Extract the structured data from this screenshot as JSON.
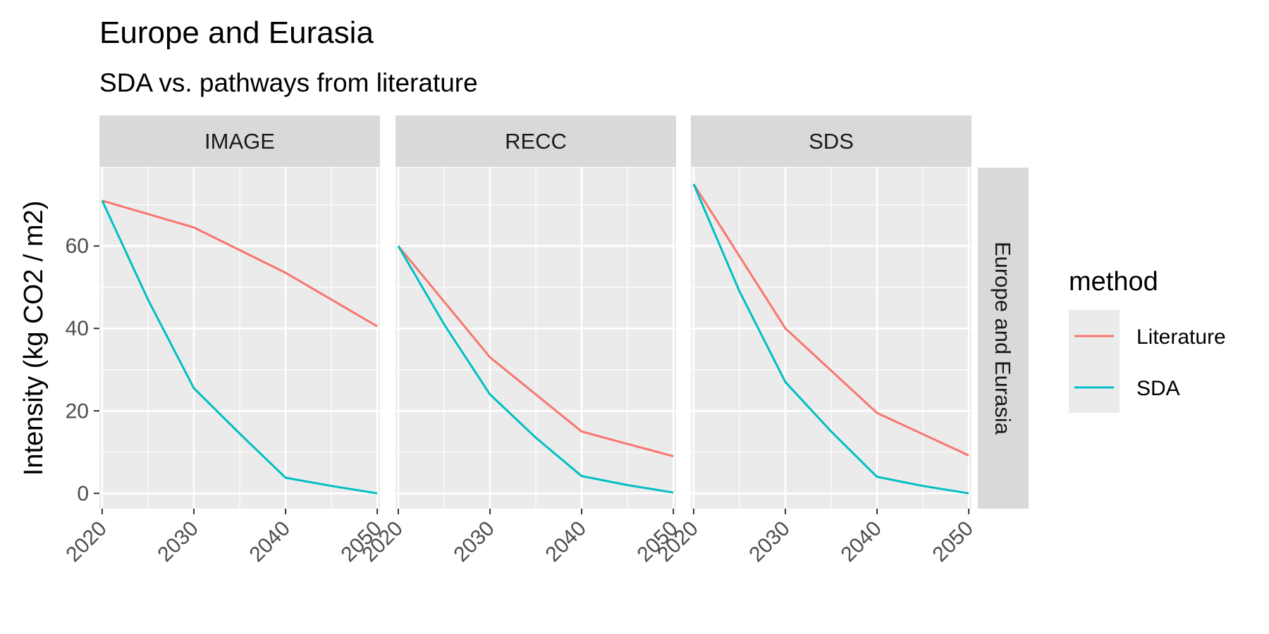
{
  "chart_data": {
    "type": "line",
    "title": "Europe and Eurasia",
    "subtitle": "SDA vs. pathways from literature",
    "ylabel": "Intensity (kg CO2 / m2)",
    "xlabel": "",
    "row_strip": "Europe and Eurasia",
    "x_ticks": [
      2020,
      2030,
      2040,
      2050
    ],
    "y_ticks": [
      0,
      20,
      40,
      60
    ],
    "xlim": [
      2019.7,
      2050.3
    ],
    "ylim": [
      -3.7,
      79
    ],
    "grid": true,
    "legend": {
      "title": "method",
      "position": "right",
      "entries": [
        {
          "name": "Literature",
          "color": "#F8766D"
        },
        {
          "name": "SDA",
          "color": "#00BFC4"
        }
      ]
    },
    "panels": [
      {
        "label": "IMAGE",
        "series": [
          {
            "name": "Literature",
            "color": "#F8766D",
            "x": [
              2020,
              2030,
              2040,
              2050
            ],
            "y": [
              71,
              64.5,
              53.5,
              40.5
            ]
          },
          {
            "name": "SDA",
            "color": "#00BFC4",
            "x": [
              2020,
              2025,
              2030,
              2035,
              2040,
              2045,
              2050
            ],
            "y": [
              71,
              47,
              25.5,
              14.5,
              3.8,
              1.8,
              0
            ]
          }
        ]
      },
      {
        "label": "RECC",
        "series": [
          {
            "name": "Literature",
            "color": "#F8766D",
            "x": [
              2020,
              2030,
              2040,
              2050
            ],
            "y": [
              60,
              33,
              15,
              9
            ]
          },
          {
            "name": "SDA",
            "color": "#00BFC4",
            "x": [
              2020,
              2025,
              2030,
              2035,
              2040,
              2045,
              2050
            ],
            "y": [
              60,
              41,
              24,
              13.5,
              4.2,
              2,
              0.2
            ]
          }
        ]
      },
      {
        "label": "SDS",
        "series": [
          {
            "name": "Literature",
            "color": "#F8766D",
            "x": [
              2020,
              2030,
              2040,
              2050
            ],
            "y": [
              75,
              40,
              19.5,
              9.2
            ]
          },
          {
            "name": "SDA",
            "color": "#00BFC4",
            "x": [
              2020,
              2025,
              2030,
              2035,
              2040,
              2045,
              2050
            ],
            "y": [
              75,
              49,
              27,
              15,
              4,
              1.8,
              0
            ]
          }
        ]
      }
    ]
  }
}
